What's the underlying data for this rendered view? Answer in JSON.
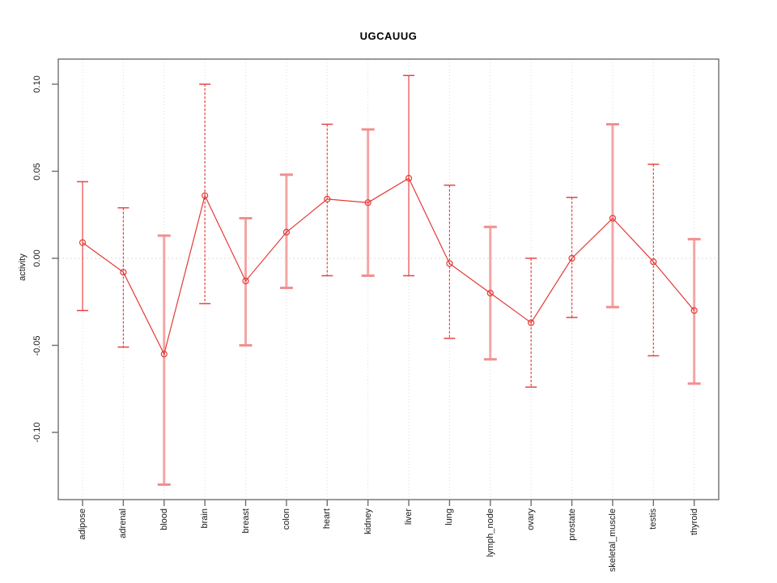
{
  "chart_data": {
    "type": "line",
    "title": "UGCAUUG",
    "xlabel": "",
    "ylabel": "activity",
    "ylim": [
      -0.135,
      0.115
    ],
    "yticks": [
      0.1,
      0.05,
      0.0,
      -0.05,
      -0.1
    ],
    "ytick_labels": [
      "0.10",
      "0.05",
      "0.00",
      "-0.05",
      "-0.10"
    ],
    "grid": {
      "vertical": "dotted light-gray line at each category",
      "horizontal": "dotted light-gray line at y = 0 only"
    },
    "legend": null,
    "categories": [
      "adipose",
      "adrenal",
      "blood",
      "brain",
      "breast",
      "colon",
      "heart",
      "kidney",
      "liver",
      "lung",
      "lymph_node",
      "ovary",
      "prostate",
      "skeletal_muscle",
      "testis",
      "thyroid"
    ],
    "series": [
      {
        "name": "activity",
        "marker": "open-circle",
        "values": [
          0.009,
          -0.008,
          -0.055,
          0.036,
          -0.013,
          0.015,
          0.034,
          0.032,
          0.046,
          -0.003,
          -0.02,
          -0.037,
          0.0,
          0.023,
          -0.002,
          -0.03
        ],
        "err_hi": [
          0.044,
          0.029,
          0.013,
          0.1,
          0.023,
          0.048,
          0.077,
          0.074,
          0.105,
          0.042,
          0.018,
          0.0,
          0.035,
          0.077,
          0.054,
          0.011
        ],
        "err_lo": [
          -0.03,
          -0.051,
          -0.13,
          -0.026,
          -0.05,
          -0.017,
          -0.01,
          -0.01,
          -0.01,
          -0.046,
          -0.058,
          -0.074,
          -0.034,
          -0.028,
          -0.056,
          -0.072
        ],
        "error_bar_styles": [
          "solid",
          "dashed",
          "thick",
          "dashed",
          "thick",
          "thick",
          "dashed",
          "thick",
          "solid",
          "dashed",
          "thick",
          "dashed",
          "dashed",
          "thick",
          "dashed",
          "thick"
        ]
      }
    ]
  },
  "colors": {
    "line": "#e53935",
    "marker": "#e53935",
    "error_thin": "#e54545",
    "error_thick": "#f4a5a5",
    "error_thick_cap": "#f28f8f",
    "grid": "#dcdcdc",
    "zero_line": "#dedede",
    "axis_box": "#6e6e6e",
    "text": "#1a1a1a",
    "background": "#ffffff"
  }
}
